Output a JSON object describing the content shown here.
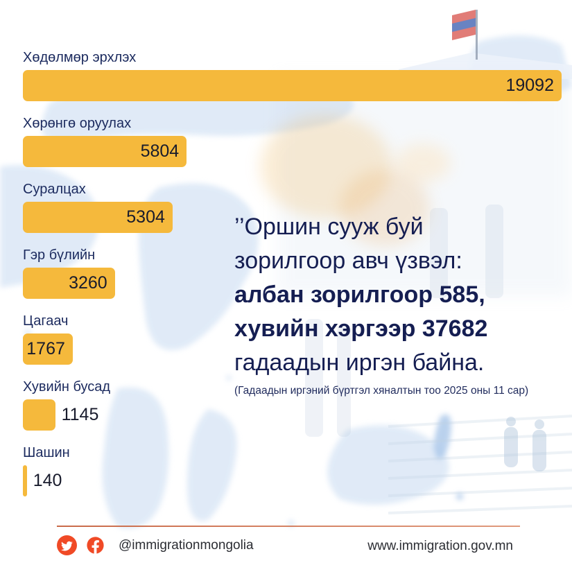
{
  "chart_data": {
    "type": "bar",
    "orientation": "horizontal",
    "categories": [
      "Хөдөлмөр эрхлэх",
      "Хөрөнгө оруулах",
      "Суралцах",
      "Гэр бүлийн",
      "Цагаач",
      "Хувийн бусад",
      "Шашин"
    ],
    "values": [
      19092,
      5804,
      5304,
      3260,
      1767,
      1145,
      140
    ],
    "xlim": [
      0,
      19092
    ],
    "grid": false,
    "legend": "none",
    "bar_color": "#F5B93C",
    "label_color": "#1B2A5E",
    "value_color": "#181B2C"
  },
  "quote": {
    "lines": [
      {
        "text": "’’Оршин сууж буй",
        "bold": false
      },
      {
        "text": "зорилгоор авч үзвэл:",
        "bold": false
      },
      {
        "text": "албан зорилгоор 585,",
        "bold": true
      },
      {
        "text": "хувийн хэргээр 37682",
        "bold": true
      },
      {
        "text": "гадаадын иргэн байна.",
        "bold": false
      }
    ],
    "footnote": "(Гадаадын иргэний бүртгэл хяналтын тоо 2025 оны 11 сар)"
  },
  "footer": {
    "handle": "@immigrationmongolia",
    "website": "www.immigration.gov.mn",
    "accent_color": "#F04A26",
    "line_color": "#C96A49"
  },
  "icons": {
    "twitter": "twitter-icon",
    "facebook": "facebook-icon",
    "flag": "mongolian-flag"
  },
  "background": {
    "map_color": "#D6E4F5",
    "base_color": "#FFFFFF"
  }
}
